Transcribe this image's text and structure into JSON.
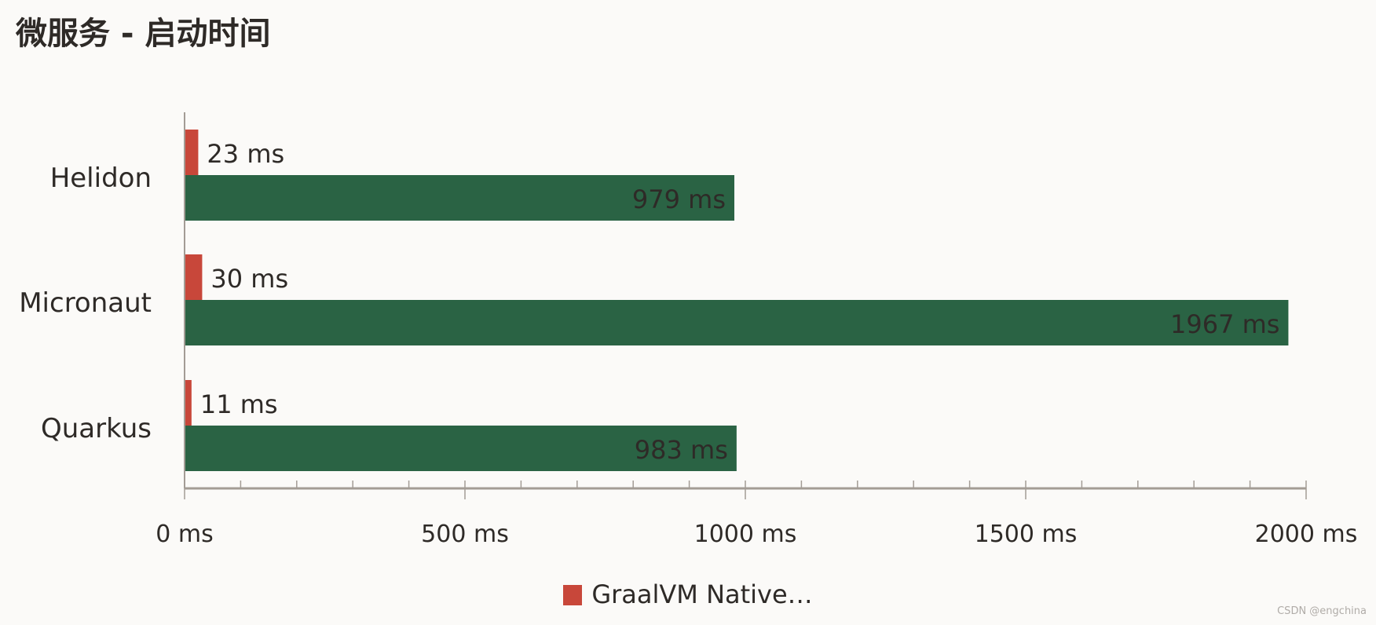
{
  "chart_data": {
    "type": "bar",
    "orientation": "horizontal",
    "title": "微服务 - 启动时间",
    "categories": [
      "Helidon",
      "Micronaut",
      "Quarkus"
    ],
    "series": [
      {
        "name": "GraalVM Native…",
        "color": "#c8473a",
        "values": [
          23,
          30,
          11
        ],
        "labels": [
          "23 ms",
          "30 ms",
          "11 ms"
        ]
      },
      {
        "color": "#2a6344",
        "values": [
          979,
          1967,
          983
        ],
        "labels": [
          "979 ms",
          "1967 ms",
          "983 ms"
        ]
      }
    ],
    "xlim": [
      0,
      2000
    ],
    "xticks": [
      0,
      500,
      1000,
      1500,
      2000
    ],
    "xtick_labels": [
      "0 ms",
      "500 ms",
      "1000 ms",
      "1500 ms",
      "2000 ms"
    ],
    "minor_tick_step": 100,
    "grid": false,
    "legend": "bottom"
  },
  "watermark": "CSDN @engchina"
}
